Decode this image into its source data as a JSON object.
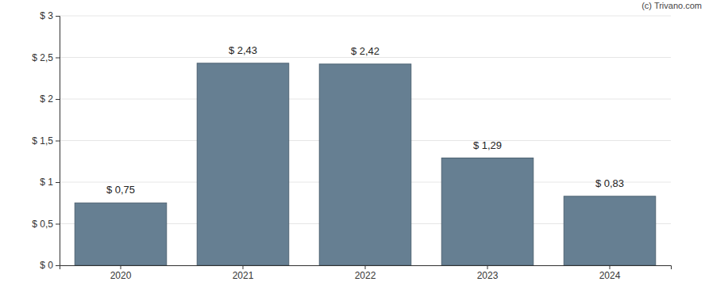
{
  "chart_data": {
    "type": "bar",
    "annotations": [
      "(c) Trivano.com"
    ],
    "categories": [
      "2020",
      "2021",
      "2022",
      "2023",
      "2024"
    ],
    "values": [
      0.75,
      2.43,
      2.42,
      1.29,
      0.83
    ],
    "value_labels": [
      "$ 0,75",
      "$ 2,43",
      "$ 2,42",
      "$ 1,29",
      "$ 0,83"
    ],
    "color": "#667f92",
    "ylim": [
      0,
      3
    ],
    "yticks": [
      {
        "value": 0,
        "label": "$ 0"
      },
      {
        "value": 0.5,
        "label": "$ 0,5"
      },
      {
        "value": 1,
        "label": "$ 1"
      },
      {
        "value": 1.5,
        "label": "$ 1,5"
      },
      {
        "value": 2,
        "label": "$ 2"
      },
      {
        "value": 2.5,
        "label": "$ 2,5"
      },
      {
        "value": 3,
        "label": "$ 3"
      }
    ],
    "grid": true,
    "data_labels": true
  }
}
